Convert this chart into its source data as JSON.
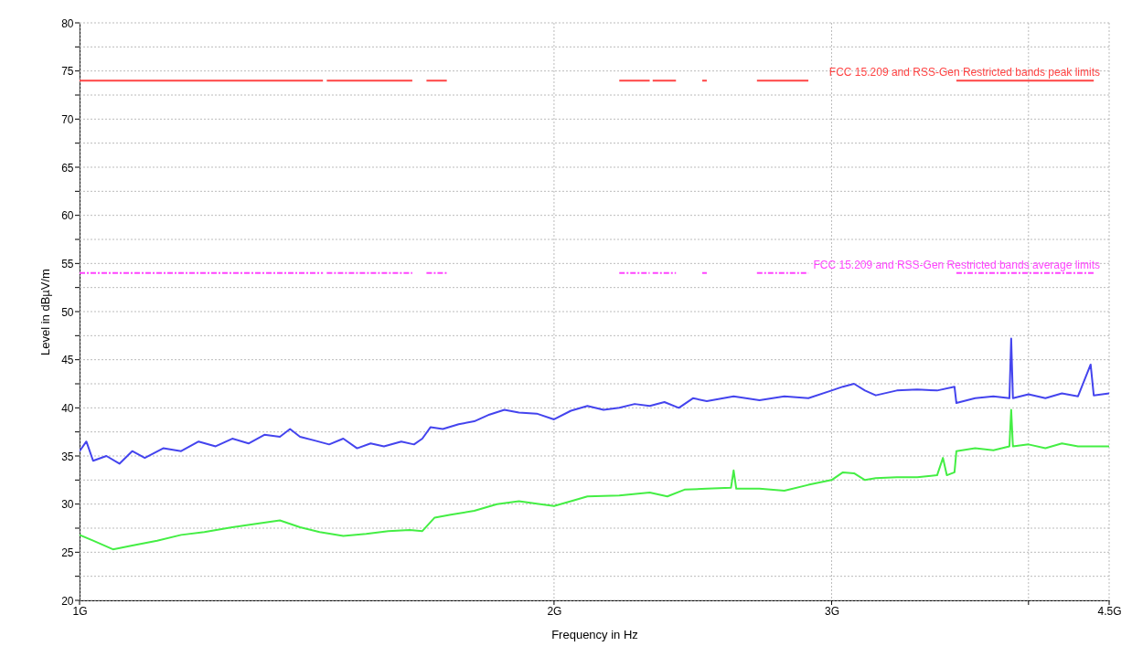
{
  "chart_data": {
    "type": "line",
    "xlabel": "Frequency in Hz",
    "ylabel": "Level in dBµV/m",
    "xlim": [
      1,
      4.5
    ],
    "xticks": [
      {
        "value": 1,
        "label": "1G"
      },
      {
        "value": 2,
        "label": "2G"
      },
      {
        "value": 3,
        "label": "3G"
      },
      {
        "value": 4,
        "label": null
      },
      {
        "value": 4.5,
        "label": "4.5G"
      }
    ],
    "log": "x",
    "ylim": [
      20,
      80
    ],
    "yticks": [
      20,
      {
        "value": 22.5,
        "label": null
      },
      25,
      {
        "value": 27.5,
        "label": null
      },
      30,
      {
        "value": 32.5,
        "label": null
      },
      35,
      {
        "value": 37.5,
        "label": null
      },
      40,
      {
        "value": 42.5,
        "label": null
      },
      45,
      {
        "value": 47.5,
        "label": null
      },
      50,
      {
        "value": 52.5,
        "label": null
      },
      55,
      {
        "value": 57.5,
        "label": null
      },
      60,
      {
        "value": 62.5,
        "label": null
      },
      65,
      {
        "value": 67.5,
        "label": null
      },
      70,
      {
        "value": 72.5,
        "label": null
      },
      75,
      {
        "value": 77.5,
        "label": null
      },
      80
    ],
    "grid": true,
    "series": [
      {
        "color": "#ff4444",
        "line_style": "solid",
        "x": [
          1,
          1.427,
          1.431,
          1.435,
          1.626,
          1.64,
          1.66,
          1.71,
          2,
          2.2,
          2.3,
          2.305,
          2.31,
          2.39,
          2.44,
          2.4835,
          2.5,
          2.6,
          2.69,
          2.9,
          3.1,
          3.6,
          4.4
        ],
        "values": [
          74,
          74,
          null,
          74,
          74,
          null,
          74,
          74,
          null,
          74,
          74,
          null,
          74,
          74,
          null,
          74,
          74,
          null,
          74,
          74,
          null,
          74,
          74
        ]
      },
      {
        "color": "#ff44ff",
        "line_style": "dashed",
        "x": [
          1,
          1.427,
          1.431,
          1.435,
          1.626,
          1.64,
          1.66,
          1.71,
          2,
          2.2,
          2.3,
          2.305,
          2.31,
          2.39,
          2.44,
          2.4835,
          2.5,
          2.6,
          2.69,
          2.9,
          3.1,
          3.6,
          4.4
        ],
        "values": [
          54,
          54,
          null,
          54,
          54,
          null,
          54,
          54,
          null,
          54,
          54,
          null,
          54,
          54,
          null,
          54,
          54,
          null,
          54,
          54,
          null,
          54,
          54
        ]
      },
      {
        "color": "#4444ee",
        "x": [
          1,
          1.01,
          1.02,
          1.04,
          1.06,
          1.08,
          1.1,
          1.13,
          1.16,
          1.19,
          1.22,
          1.25,
          1.28,
          1.31,
          1.34,
          1.36,
          1.38,
          1.41,
          1.44,
          1.47,
          1.5,
          1.53,
          1.56,
          1.6,
          1.63,
          1.65,
          1.67,
          1.7,
          1.74,
          1.78,
          1.82,
          1.86,
          1.9,
          1.95,
          2,
          2.05,
          2.1,
          2.15,
          2.2,
          2.25,
          2.3,
          2.35,
          2.4,
          2.45,
          2.5,
          2.6,
          2.7,
          2.8,
          2.9,
          3,
          3.05,
          3.1,
          3.15,
          3.2,
          3.3,
          3.4,
          3.5,
          3.59,
          3.6,
          3.7,
          3.8,
          3.89,
          3.9,
          3.91,
          4,
          4.1,
          4.2,
          4.3,
          4.38,
          4.4,
          4.5
        ],
        "values": [
          35.5,
          36.5,
          34.5,
          35,
          34.2,
          35.5,
          34.8,
          35.8,
          35.5,
          36.5,
          36,
          36.8,
          36.3,
          37.2,
          37,
          37.8,
          37,
          36.6,
          36.2,
          36.8,
          35.8,
          36.3,
          36,
          36.5,
          36.2,
          36.8,
          38,
          37.8,
          38.3,
          38.6,
          39.3,
          39.8,
          39.5,
          39.4,
          38.8,
          39.7,
          40.2,
          39.8,
          40,
          40.4,
          40.2,
          40.6,
          40,
          41,
          40.7,
          41.2,
          40.8,
          41.2,
          41,
          41.8,
          42.2,
          42.5,
          41.8,
          41.3,
          41.8,
          41.9,
          41.8,
          42.2,
          40.5,
          41,
          41.2,
          41,
          47.2,
          41,
          41.4,
          41,
          41.5,
          41.2,
          44.5,
          41.3,
          41.5
        ]
      },
      {
        "color": "#44ee44",
        "x": [
          1,
          1.02,
          1.05,
          1.08,
          1.12,
          1.16,
          1.2,
          1.25,
          1.3,
          1.34,
          1.38,
          1.42,
          1.47,
          1.52,
          1.57,
          1.62,
          1.65,
          1.68,
          1.72,
          1.78,
          1.84,
          1.9,
          1.96,
          2,
          2.05,
          2.1,
          2.2,
          2.3,
          2.36,
          2.42,
          2.5,
          2.59,
          2.6,
          2.61,
          2.7,
          2.8,
          2.9,
          3,
          3.05,
          3.1,
          3.15,
          3.2,
          3.3,
          3.4,
          3.5,
          3.53,
          3.55,
          3.59,
          3.6,
          3.7,
          3.8,
          3.89,
          3.9,
          3.91,
          4,
          4.1,
          4.2,
          4.3,
          4.5
        ],
        "values": [
          26.8,
          26.2,
          25.3,
          25.7,
          26.2,
          26.8,
          27.1,
          27.6,
          28,
          28.3,
          27.6,
          27.1,
          26.7,
          26.9,
          27.2,
          27.3,
          27.2,
          28.6,
          28.9,
          29.3,
          30,
          30.3,
          30,
          29.8,
          30.3,
          30.8,
          30.9,
          31.2,
          30.8,
          31.5,
          31.6,
          31.7,
          33.5,
          31.6,
          31.6,
          31.4,
          32,
          32.5,
          33.3,
          33.2,
          32.5,
          32.7,
          32.8,
          32.8,
          33,
          34.8,
          33,
          33.3,
          35.5,
          35.8,
          35.6,
          36,
          39.8,
          36,
          36.2,
          35.8,
          36.3,
          36,
          36
        ]
      }
    ],
    "annotations": [
      "FCC 15.209 and RSS-Gen Restricted bands peak limits",
      "FCC 15.209 and RSS-Gen Restricted bands average limits"
    ]
  }
}
